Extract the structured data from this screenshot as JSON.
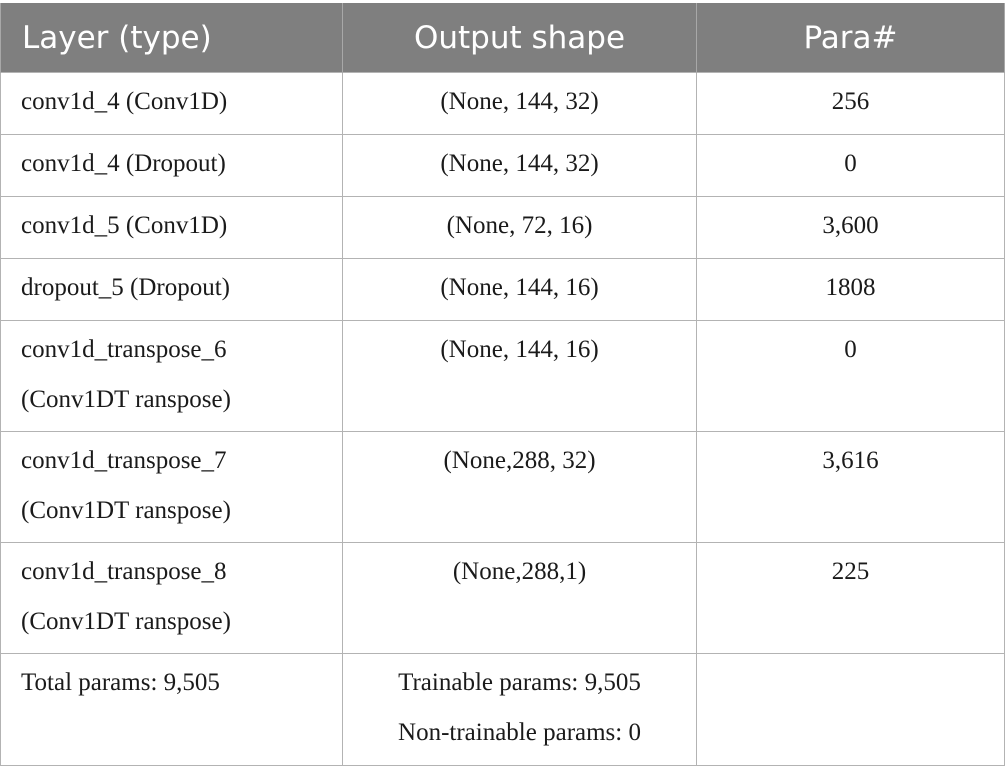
{
  "table": {
    "headers": [
      "Layer (type)",
      "Output shape",
      "Para#"
    ],
    "rows": [
      {
        "layer": [
          "conv1d_4 (Conv1D)"
        ],
        "shape": "(None, 144, 32)",
        "params": "256"
      },
      {
        "layer": [
          "conv1d_4 (Dropout)"
        ],
        "shape": "(None, 144, 32)",
        "params": "0"
      },
      {
        "layer": [
          "conv1d_5 (Conv1D)"
        ],
        "shape": "(None, 72, 16)",
        "params": "3,600"
      },
      {
        "layer": [
          "dropout_5 (Dropout)"
        ],
        "shape": "(None, 144, 16)",
        "params": "1808"
      },
      {
        "layer": [
          "conv1d_transpose_6",
          "(Conv1DT ranspose)"
        ],
        "shape": "(None, 144, 16)",
        "params": "0"
      },
      {
        "layer": [
          "conv1d_transpose_7",
          "(Conv1DT ranspose)"
        ],
        "shape": "(None,288, 32)",
        "params": "3,616"
      },
      {
        "layer": [
          "conv1d_transpose_8",
          "(Conv1DT ranspose)"
        ],
        "shape": "(None,288,1)",
        "params": "225"
      }
    ],
    "summary": {
      "total": "Total params: 9,505",
      "trainable": "Trainable params: 9,505",
      "non_trainable": "Non-trainable params: 0",
      "params": ""
    }
  }
}
